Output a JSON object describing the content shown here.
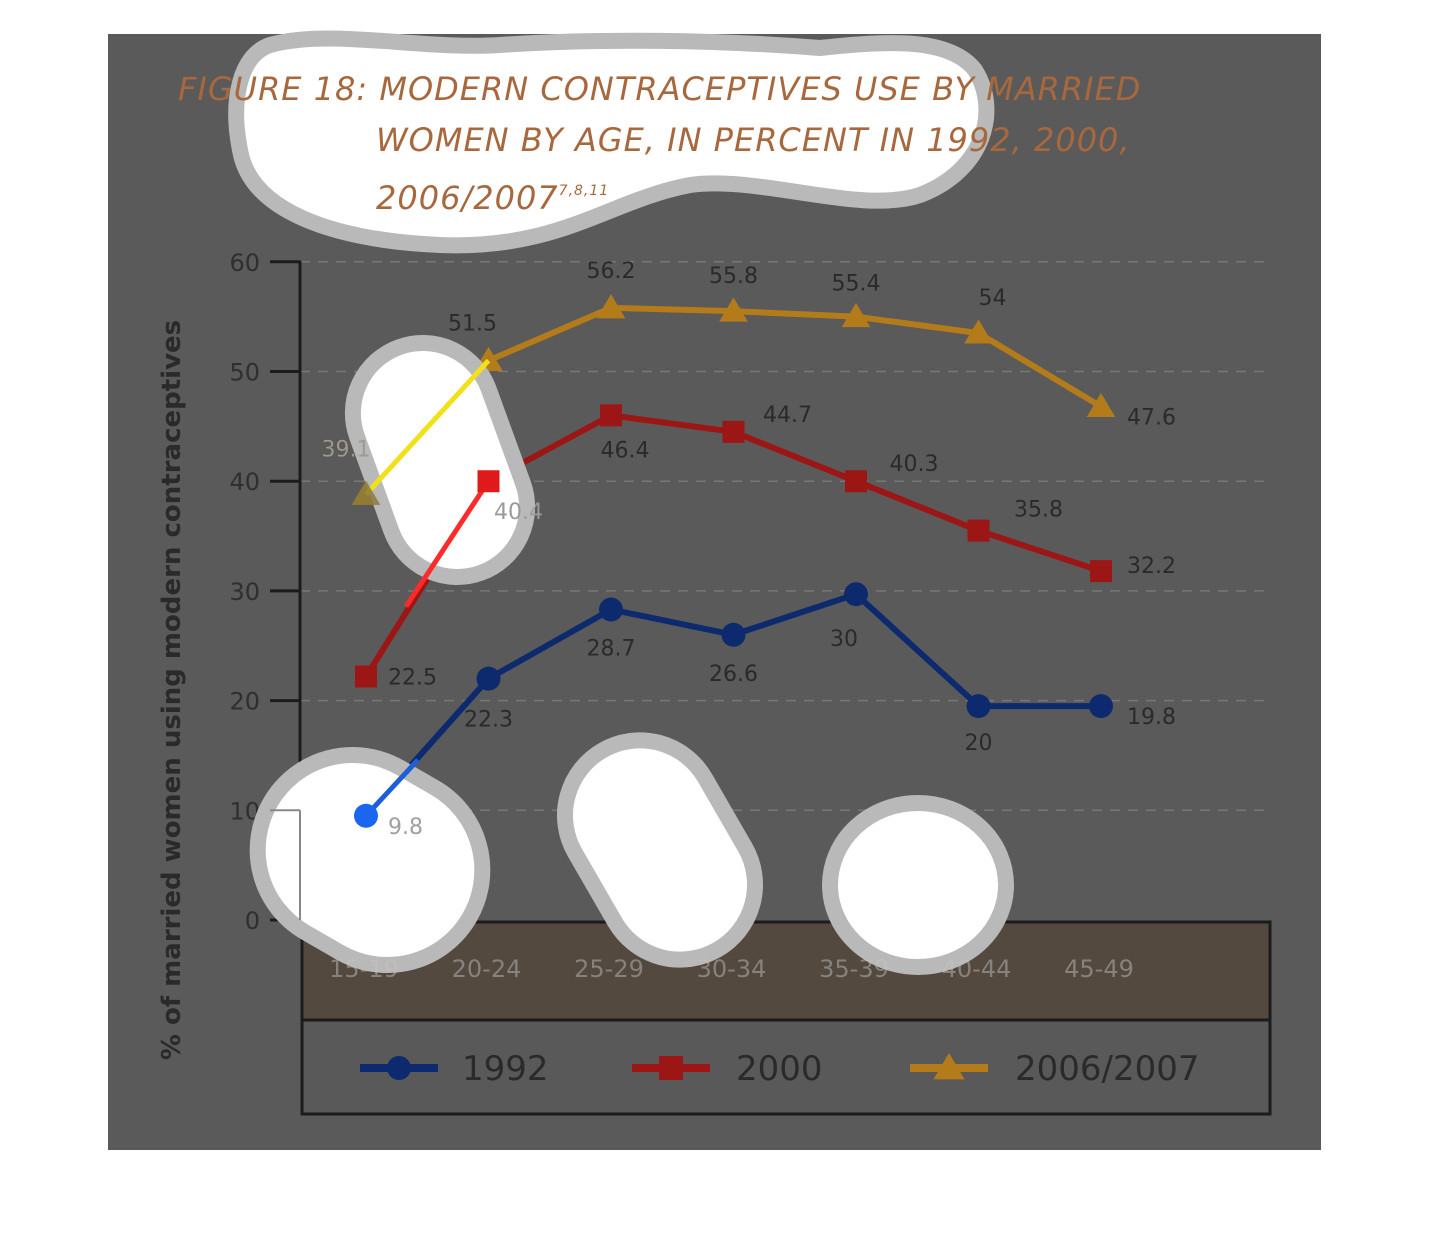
{
  "figure": {
    "title_line1": "FIGURE 18: MODERN CONTRACEPTIVES USE BY MARRIED",
    "title_line2": "WOMEN BY AGE, IN PERCENT IN 1992, 2000,",
    "title_line3": "2006/2007",
    "title_refs": "7,8,11"
  },
  "chart_data": {
    "type": "line",
    "title": "FIGURE 18: MODERN CONTRACEPTIVES USE BY MARRIED WOMEN BY AGE, IN PERCENT IN 1992, 2000, 2006/2007",
    "ylabel": "% of married women using modern contraceptives",
    "xlabel": "",
    "categories": [
      "15-19",
      "20-24",
      "25-29",
      "30-34",
      "35-39",
      "40-44",
      "45-49"
    ],
    "yticks": [
      "0",
      "10",
      "20",
      "30",
      "40",
      "50",
      "60"
    ],
    "ylim": [
      0,
      60
    ],
    "grid": "horizontal dashed",
    "legend": "bottom",
    "series": [
      {
        "name": "1992",
        "marker": "circle",
        "color": "#0d2a6e",
        "values": [
          9.8,
          22.3,
          28.7,
          26.6,
          30,
          20,
          19.8
        ],
        "labels": [
          "9.8",
          "22.3",
          "28.7",
          "26.6",
          "30",
          "20",
          "19.8"
        ],
        "plotted": [
          9.5,
          22,
          28.3,
          26,
          29.7,
          19.5,
          19.5
        ]
      },
      {
        "name": "2000",
        "marker": "square",
        "color": "#9c1616",
        "values": [
          22.5,
          40.4,
          46.4,
          44.7,
          40.3,
          35.8,
          32.2
        ],
        "labels": [
          "22.5",
          "40.4",
          "46.4",
          "44.7",
          "40.3",
          "35.8",
          "32.2"
        ],
        "plotted": [
          22.2,
          40,
          46,
          44.5,
          40,
          35.5,
          31.8
        ]
      },
      {
        "name": "2006/2007",
        "marker": "triangle",
        "color": "#b47b1a",
        "values": [
          39.1,
          51.5,
          56.2,
          55.8,
          55.4,
          54,
          47.6
        ],
        "labels": [
          "39.1",
          "51.5",
          "56.2",
          "55.8",
          "55.4",
          "54",
          "47.6"
        ],
        "plotted": [
          38.8,
          51,
          55.8,
          55.5,
          55,
          53.5,
          46.8
        ]
      }
    ]
  }
}
